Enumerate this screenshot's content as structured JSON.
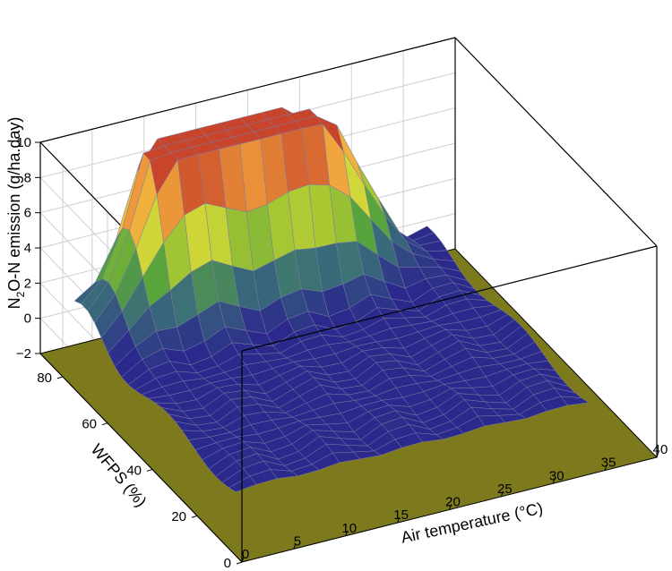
{
  "chart_data": {
    "type": "surface",
    "title": "",
    "x": {
      "label": "Air temperature (°C)",
      "range": [
        0,
        40
      ],
      "ticks": [
        "0",
        "5",
        "10",
        "15",
        "20",
        "25",
        "30",
        "35",
        "40"
      ]
    },
    "y": {
      "label": "WFPS (%)",
      "range": [
        0,
        90
      ],
      "ticks": [
        "0",
        "20",
        "40",
        "60",
        "80"
      ]
    },
    "z": {
      "label_parts": [
        "N",
        "2",
        "O-N emission (g/ha.day)"
      ],
      "range": [
        -2,
        10
      ],
      "ticks": [
        "−2",
        "0",
        "2",
        "4",
        "6",
        "8",
        "10"
      ]
    },
    "floor_color": "#7d7a1e",
    "surface_base_color": "#2b2a8c",
    "surface_high_color": "#c8442a",
    "peaks": [
      {
        "temperature": 12,
        "wfps": 82,
        "emission": 8.6
      },
      {
        "temperature": 20,
        "wfps": 80,
        "emission": 8.2
      },
      {
        "temperature": 25,
        "wfps": 78,
        "emission": 6.0
      },
      {
        "temperature": 10,
        "wfps": 76,
        "emission": 5.0
      }
    ],
    "baseline_emission": 0.2,
    "grid": true
  }
}
